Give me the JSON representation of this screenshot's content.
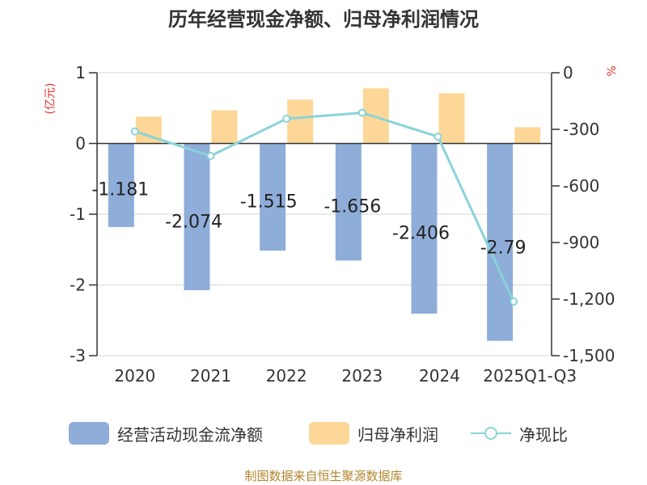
{
  "title": "历年经营现金净额、归母净利润情况",
  "units": {
    "left": "(亿元)",
    "right": "%"
  },
  "source": "制图数据来自恒生聚源数据库",
  "colors": {
    "cash": "#8eadd9",
    "profit": "#fdd797",
    "ratio": "#89d3d9",
    "unit": "#d9342b",
    "source": "#b3862f"
  },
  "legend": [
    {
      "label": "经营活动现金流净额",
      "kind": "bar",
      "color": "#8eadd9"
    },
    {
      "label": "归母净利润",
      "kind": "bar",
      "color": "#fdd797"
    },
    {
      "label": "净现比",
      "kind": "line",
      "color": "#89d3d9"
    }
  ],
  "chart_data": {
    "type": "bar",
    "categories": [
      "2020",
      "2021",
      "2022",
      "2023",
      "2024",
      "2025Q1-Q3"
    ],
    "series": [
      {
        "name": "经营活动现金流净额",
        "type": "bar",
        "axis": "left",
        "values": [
          -1.181,
          -2.074,
          -1.515,
          -1.656,
          -2.406,
          -2.79
        ],
        "labels": [
          "-1.181",
          "-2.074",
          "-1.515",
          "-1.656",
          "-2.406",
          "-2.79"
        ]
      },
      {
        "name": "归母净利润",
        "type": "bar",
        "axis": "left",
        "values": [
          0.38,
          0.47,
          0.62,
          0.78,
          0.71,
          0.23
        ]
      },
      {
        "name": "净现比",
        "type": "line",
        "axis": "right",
        "values": [
          -311,
          -441,
          -244,
          -212,
          -339,
          -1213
        ]
      }
    ],
    "left_axis": {
      "min": -3,
      "max": 1,
      "ticks": [
        "1",
        "0",
        "-1",
        "-2",
        "-3"
      ]
    },
    "right_axis": {
      "min": -1500,
      "max": 0,
      "ticks": [
        "0",
        "-300",
        "-600",
        "-900",
        "-1,200",
        "-1,500"
      ]
    },
    "grid": true,
    "legend_position": "bottom"
  }
}
